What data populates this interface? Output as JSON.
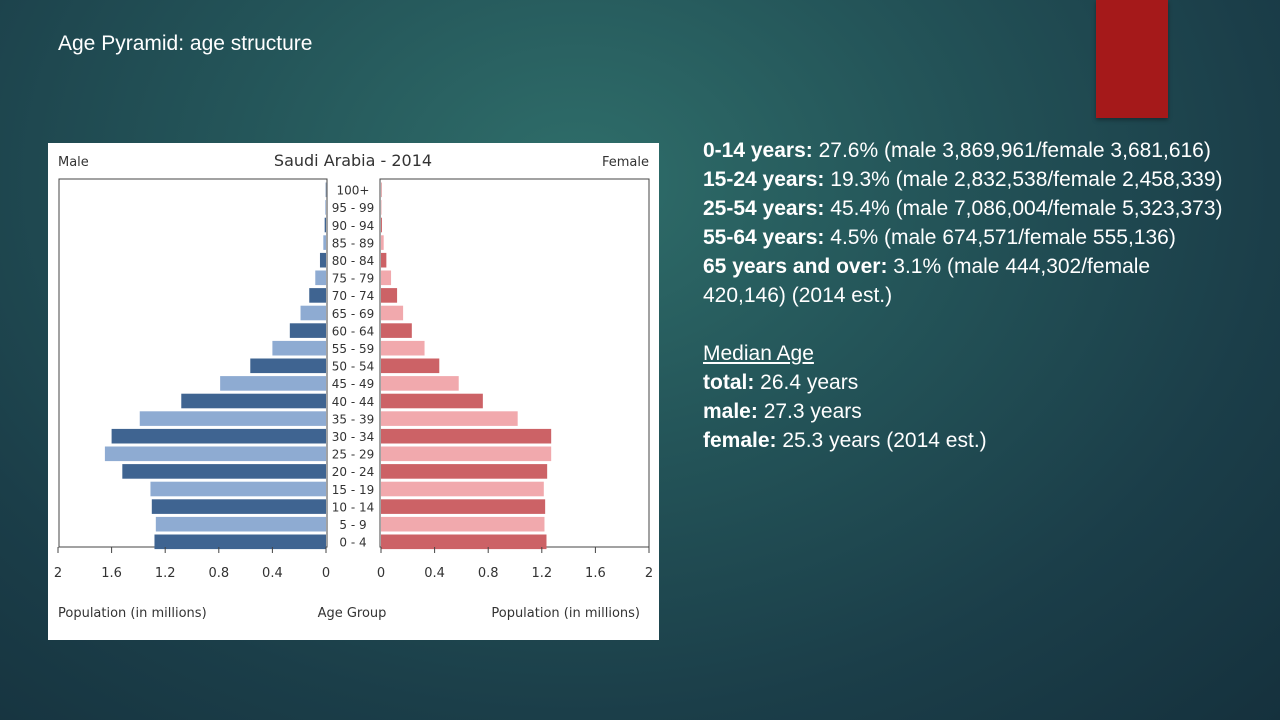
{
  "slide_title": "Age Pyramid: age structure",
  "colors": {
    "male_dark": "#3f6491",
    "male_light": "#8eabd2",
    "female_dark": "#cc6266",
    "female_light": "#f1a9ad",
    "accent_tab": "#a5191a"
  },
  "chart_data": {
    "type": "bar",
    "orientation": "horizontal-population-pyramid",
    "title": "Saudi Arabia - 2014",
    "left_label": "Male",
    "right_label": "Female",
    "xlabel_left": "Population (in millions)",
    "xlabel_center": "Age Group",
    "xlabel_right": "Population (in millions)",
    "xlim": [
      0,
      2
    ],
    "ticks_left": [
      "2",
      "1.6",
      "1.2",
      "0.8",
      "0.4",
      "0"
    ],
    "ticks_right": [
      "0",
      "0.4",
      "0.8",
      "1.2",
      "1.6",
      "2"
    ],
    "tick_values": [
      0,
      0.4,
      0.8,
      1.2,
      1.6,
      2
    ],
    "categories": [
      "100+",
      "95 - 99",
      "90 - 94",
      "85 - 89",
      "80 - 84",
      "75 - 79",
      "70 - 74",
      "65 - 69",
      "60 - 64",
      "55 - 59",
      "50 - 54",
      "45 - 49",
      "40 - 44",
      "35 - 39",
      "30 - 34",
      "25 - 29",
      "20 - 24",
      "15 - 19",
      "10 - 14",
      "5 - 9",
      "0 - 4"
    ],
    "series": [
      {
        "name": "Male",
        "values": [
          0.002,
          0.005,
          0.01,
          0.02,
          0.045,
          0.08,
          0.125,
          0.19,
          0.27,
          0.4,
          0.565,
          0.79,
          1.08,
          1.39,
          1.6,
          1.65,
          1.52,
          1.31,
          1.3,
          1.27,
          1.28
        ]
      },
      {
        "name": "Female",
        "values": [
          0.001,
          0.003,
          0.007,
          0.02,
          0.04,
          0.075,
          0.12,
          0.165,
          0.23,
          0.325,
          0.435,
          0.58,
          0.76,
          1.02,
          1.27,
          1.27,
          1.24,
          1.215,
          1.225,
          1.22,
          1.235
        ]
      }
    ]
  },
  "stats": [
    {
      "label": "0-14 years:",
      "text": " 27.6% (male 3,869,961/female 3,681,616)"
    },
    {
      "label": "15-24 years:",
      "text": " 19.3% (male 2,832,538/female 2,458,339)"
    },
    {
      "label": "25-54 years:",
      "text": " 45.4% (male 7,086,004/female 5,323,373)"
    },
    {
      "label": "55-64 years:",
      "text": " 4.5% (male 674,571/female 555,136)"
    },
    {
      "label": "65 years and over:",
      "text": " 3.1% (male 444,302/female 420,146)  (2014 est.)"
    }
  ],
  "median": {
    "heading": "Median Age",
    "items": [
      {
        "label": "total:",
        "text": " 26.4 years"
      },
      {
        "label": "male:",
        "text": " 27.3 years"
      },
      {
        "label": "female:",
        "text": " 25.3 years (2014 est.)"
      }
    ]
  }
}
